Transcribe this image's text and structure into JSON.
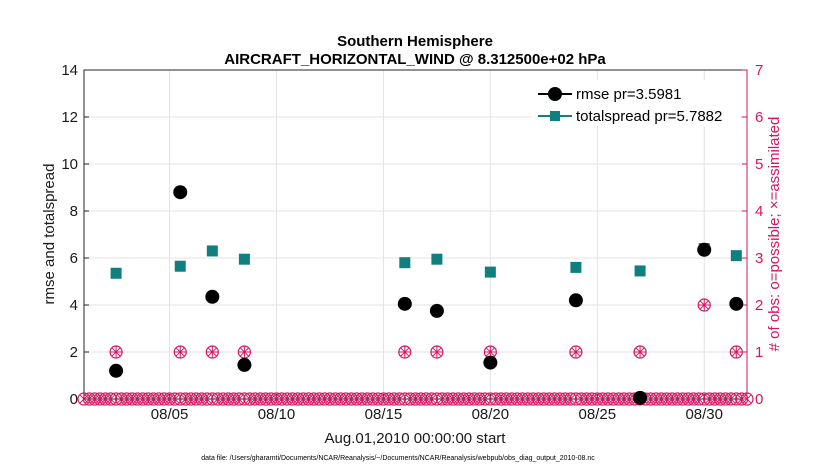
{
  "chart_data": {
    "type": "scatter",
    "title": "Southern Hemisphere",
    "subtitle": "AIRCRAFT_HORIZONTAL_WIND @ 8.312500e+02 hPa",
    "xlabel": "Aug.01,2010 00:00:00 start",
    "ylabel": "rmse and totalspread",
    "ylabel_right": "# of obs: o=possible; ×=assimilated",
    "footnote": "data file: /Users/gharamti/Documents/NCAR/Reanalysis/~/Documents/NCAR/Reanalysis/webpub/obs_diag_output_2010-08.nc",
    "xlim": [
      1,
      32
    ],
    "ylim": [
      0,
      14
    ],
    "ylim_right": [
      0,
      7
    ],
    "x_ticks": [
      5,
      10,
      15,
      20,
      25,
      30
    ],
    "x_tick_labels": [
      "08/05",
      "08/10",
      "08/15",
      "08/20",
      "08/25",
      "08/30"
    ],
    "y_ticks": [
      0,
      2,
      4,
      6,
      8,
      10,
      12,
      14
    ],
    "y_tick_labels": [
      "0",
      "2",
      "4",
      "6",
      "8",
      "10",
      "12",
      "14"
    ],
    "y_right_ticks": [
      0,
      1,
      2,
      3,
      4,
      5,
      6,
      7
    ],
    "y_right_tick_labels": [
      "0",
      "1",
      "2",
      "3",
      "4",
      "5",
      "6",
      "7"
    ],
    "grid": true,
    "legend_position": "top-right",
    "colors": {
      "rmse": "#000000",
      "spread": "#0f7f7f",
      "obs": "#d6145f",
      "grid": "#e3e3e3"
    },
    "series": [
      {
        "name": "rmse",
        "legend": "rmse pr=3.5981",
        "x": [
          2.5,
          5.5,
          7.0,
          8.5,
          16.0,
          17.5,
          20.0,
          24.0,
          27.0,
          30.0,
          31.5
        ],
        "values": [
          1.2,
          8.8,
          4.35,
          1.45,
          4.05,
          3.75,
          1.55,
          4.2,
          0.05,
          6.35,
          4.05
        ]
      },
      {
        "name": "totalspread",
        "legend": "totalspread pr=5.7882",
        "x": [
          2.5,
          5.5,
          7.0,
          8.5,
          16.0,
          17.5,
          20.0,
          24.0,
          27.0,
          30.0,
          31.5
        ],
        "values": [
          5.35,
          5.65,
          6.3,
          5.95,
          5.8,
          5.95,
          5.4,
          5.6,
          5.45,
          6.4,
          6.1
        ]
      }
    ],
    "obs_possible": {
      "x": [
        2.5,
        5.5,
        7.0,
        8.5,
        16.0,
        17.5,
        20.0,
        24.0,
        27.0,
        30.0,
        31.5
      ],
      "values": [
        1,
        1,
        1,
        1,
        1,
        1,
        1,
        1,
        1,
        2,
        1
      ]
    },
    "obs_assimilated": {
      "x": [
        2.5,
        5.5,
        7.0,
        8.5,
        16.0,
        17.5,
        20.0,
        24.0,
        27.0,
        30.0,
        31.5
      ],
      "values": [
        1,
        1,
        1,
        1,
        1,
        1,
        1,
        1,
        1,
        2,
        1
      ]
    },
    "zero_marker_spacing": 0.25
  }
}
